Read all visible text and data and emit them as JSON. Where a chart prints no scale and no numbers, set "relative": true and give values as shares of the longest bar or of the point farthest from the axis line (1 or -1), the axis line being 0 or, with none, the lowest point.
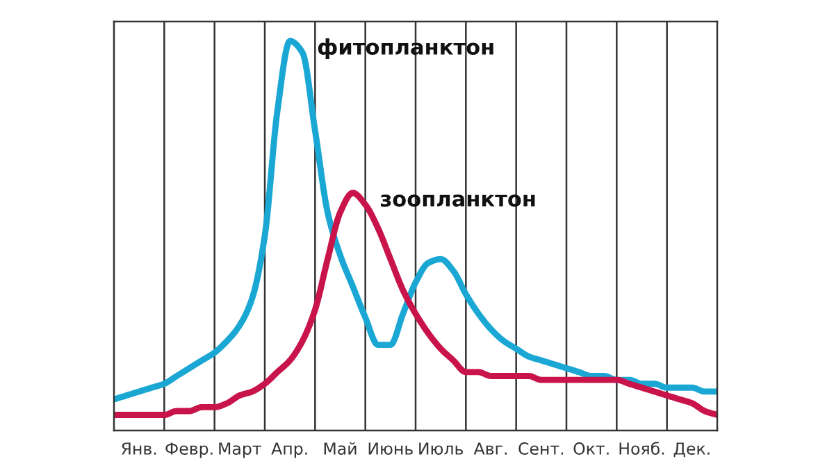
{
  "chart_data": {
    "type": "line",
    "relative": true,
    "categories": [
      null,
      null,
      "Янв.",
      null,
      null,
      null,
      "Февр.",
      null,
      null,
      null,
      "Март",
      null,
      null,
      null,
      "Апр.",
      null,
      null,
      null,
      "Май",
      null,
      null,
      null,
      "Июнь",
      null,
      null,
      null,
      "Июль",
      null,
      null,
      null,
      "Авг.",
      null,
      null,
      null,
      "Сент.",
      null,
      null,
      null,
      "Окт.",
      null,
      null,
      null,
      "Нояб.",
      null,
      null,
      null,
      "Дек.",
      null,
      null
    ],
    "grid": "x",
    "tick_labels": "x",
    "line_style": "solid",
    "marker": "none",
    "legend": false,
    "series": [
      {
        "name": "фитопланктон",
        "color": "#1aa7d4",
        "values": [
          0.08,
          0.09,
          0.1,
          0.11,
          0.12,
          0.14,
          0.16,
          0.18,
          0.2,
          0.23,
          0.27,
          0.34,
          0.5,
          0.82,
          1.0,
          0.97,
          0.77,
          0.56,
          0.45,
          0.37,
          0.29,
          0.22,
          0.22,
          0.3,
          0.38,
          0.43,
          0.44,
          0.41,
          0.35,
          0.3,
          0.26,
          0.23,
          0.21,
          0.19,
          0.18,
          0.17,
          0.16,
          0.15,
          0.14,
          0.14,
          0.13,
          0.13,
          0.12,
          0.12,
          0.11,
          0.11,
          0.11,
          0.1,
          0.1
        ]
      },
      {
        "name": "зоопланктон",
        "color": "#c8144a",
        "values": [
          0.04,
          0.04,
          0.04,
          0.04,
          0.04,
          0.05,
          0.05,
          0.06,
          0.06,
          0.07,
          0.09,
          0.1,
          0.12,
          0.15,
          0.18,
          0.23,
          0.31,
          0.44,
          0.56,
          0.61,
          0.58,
          0.52,
          0.44,
          0.36,
          0.3,
          0.25,
          0.21,
          0.18,
          0.15,
          0.15,
          0.14,
          0.14,
          0.14,
          0.14,
          0.13,
          0.13,
          0.13,
          0.13,
          0.13,
          0.13,
          0.13,
          0.12,
          0.11,
          0.1,
          0.09,
          0.08,
          0.07,
          0.05,
          0.04
        ]
      }
    ]
  }
}
